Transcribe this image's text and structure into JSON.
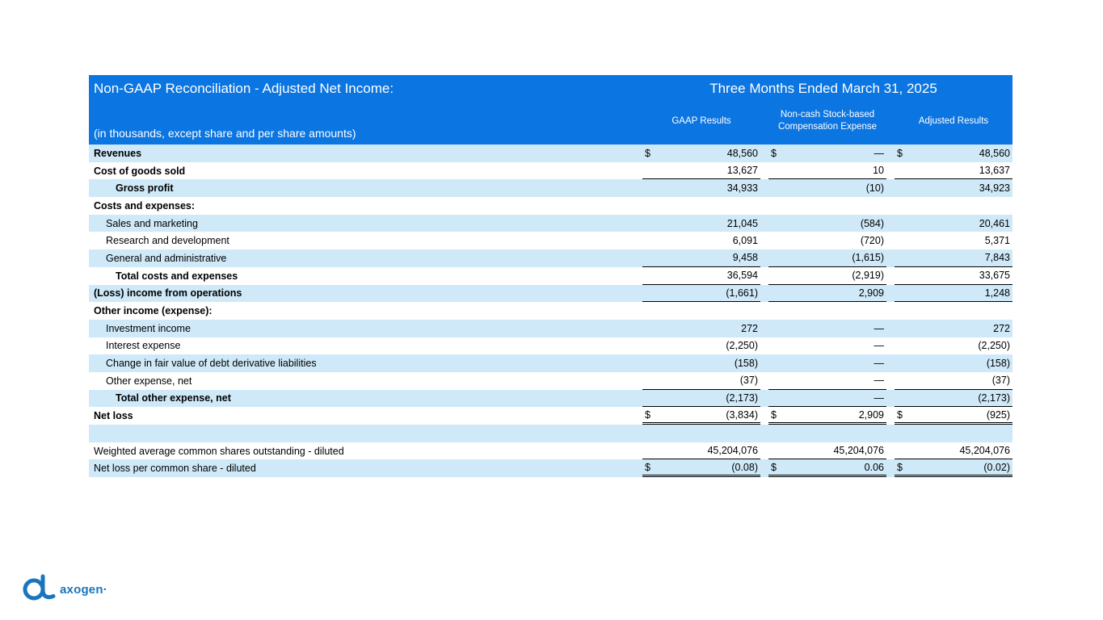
{
  "header": {
    "title": "Non-GAAP Reconciliation - Adjusted Net Income:",
    "subtitle": "(in thousands, except share and per share amounts)",
    "period": "Three Months Ended March 31, 2025",
    "columns": [
      "GAAP Results",
      "Non-cash Stock-based Compensation Expense",
      "Adjusted Results"
    ]
  },
  "colors": {
    "header_blue": "#0b75e1",
    "row_shade": "#cfe9f8",
    "logo_blue": "#1b75bc"
  },
  "table": {
    "rows": [
      {
        "label": "Revenues",
        "bold": true,
        "shade": true,
        "dollar": true,
        "values": [
          "48,560",
          "—",
          "48,560"
        ]
      },
      {
        "label": "Cost of goods sold",
        "bold": true,
        "values": [
          "13,627",
          "10",
          "13,637"
        ],
        "underline": "single"
      },
      {
        "label": "Gross profit",
        "bold": true,
        "shade": true,
        "indent": 2,
        "values": [
          "34,933",
          "(10)",
          "34,923"
        ]
      },
      {
        "label": "Costs and expenses:",
        "bold": true
      },
      {
        "label": "Sales and marketing",
        "shade": true,
        "indent": 1,
        "values": [
          "21,045",
          "(584)",
          "20,461"
        ]
      },
      {
        "label": "Research and development",
        "indent": 1,
        "values": [
          "6,091",
          "(720)",
          "5,371"
        ]
      },
      {
        "label": "General and administrative",
        "shade": true,
        "indent": 1,
        "values": [
          "9,458",
          "(1,615)",
          "7,843"
        ],
        "underline": "single"
      },
      {
        "label": "Total costs and expenses",
        "bold": true,
        "indent": 2,
        "values": [
          "36,594",
          "(2,919)",
          "33,675"
        ],
        "underline": "single"
      },
      {
        "label": "(Loss) income from operations",
        "bold": true,
        "shade": true,
        "values": [
          "(1,661)",
          "2,909",
          "1,248"
        ],
        "underline": "single"
      },
      {
        "label": "Other income (expense):",
        "bold": true
      },
      {
        "label": "Investment income",
        "shade": true,
        "indent": 1,
        "values": [
          "272",
          "—",
          "272"
        ]
      },
      {
        "label": "Interest expense",
        "indent": 1,
        "values": [
          "(2,250)",
          "—",
          "(2,250)"
        ]
      },
      {
        "label": "Change in fair value of debt derivative liabilities",
        "shade": true,
        "indent": 1,
        "values": [
          "(158)",
          "—",
          "(158)"
        ]
      },
      {
        "label": "Other expense, net",
        "indent": 1,
        "values": [
          "(37)",
          "—",
          "(37)"
        ],
        "underline": "single"
      },
      {
        "label": "Total other expense, net",
        "bold": true,
        "shade": true,
        "indent": 2,
        "values": [
          "(2,173)",
          "—",
          "(2,173)"
        ],
        "underline": "single"
      },
      {
        "label": "Net loss",
        "bold": true,
        "dollar": true,
        "values": [
          "(3,834)",
          "2,909",
          "(925)"
        ],
        "underline": "double"
      },
      {
        "label": "",
        "shade": true
      },
      {
        "label": "Weighted average common shares outstanding - diluted",
        "values": [
          "45,204,076",
          "45,204,076",
          "45,204,076"
        ],
        "underline": "single"
      },
      {
        "label": "Net loss per common share - diluted",
        "shade": true,
        "dollar": true,
        "values": [
          "(0.08)",
          "0.06",
          "(0.02)"
        ],
        "underline": "double"
      }
    ]
  },
  "logo": {
    "text": "axogen·"
  }
}
